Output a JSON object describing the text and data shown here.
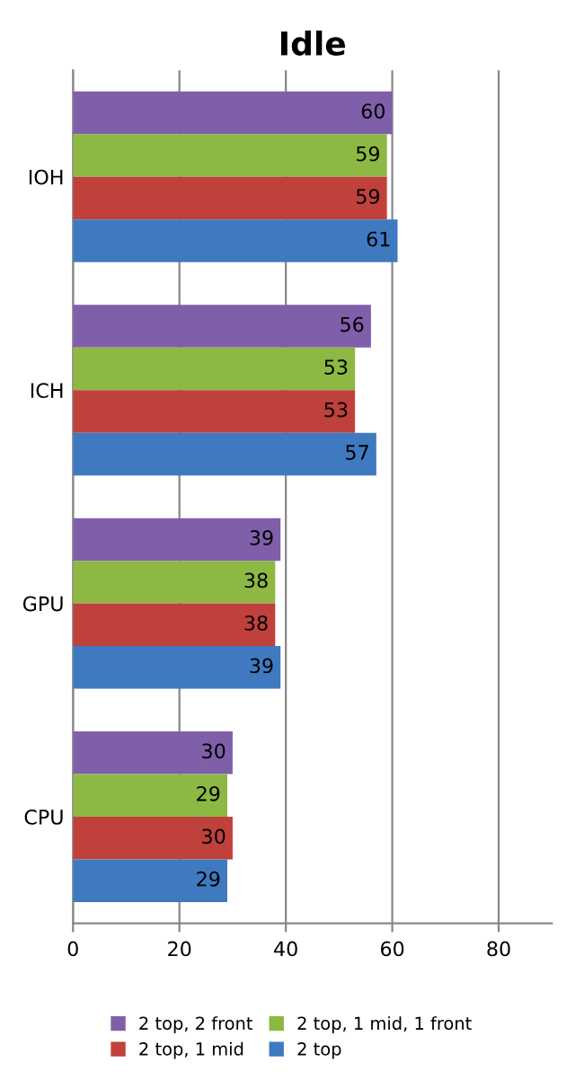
{
  "chart_data": {
    "type": "bar",
    "orientation": "horizontal",
    "title": "Idle",
    "categories": [
      "IOH",
      "ICH",
      "GPU",
      "CPU"
    ],
    "series": [
      {
        "name": "2 top, 2 front",
        "color": "#7f5fa9",
        "values": [
          60,
          56,
          39,
          30
        ]
      },
      {
        "name": "2 top, 1 mid, 1 front",
        "color": "#8db843",
        "values": [
          59,
          53,
          38,
          29
        ]
      },
      {
        "name": "2 top, 1 mid",
        "color": "#c0403c",
        "values": [
          59,
          53,
          38,
          30
        ]
      },
      {
        "name": "2 top",
        "color": "#3f7ac0",
        "values": [
          61,
          57,
          39,
          29
        ]
      }
    ],
    "xlim": [
      0,
      90
    ],
    "xticks": [
      0,
      20,
      40,
      60,
      80
    ],
    "grid": "x",
    "legend": "bottom",
    "data_labels": true
  }
}
